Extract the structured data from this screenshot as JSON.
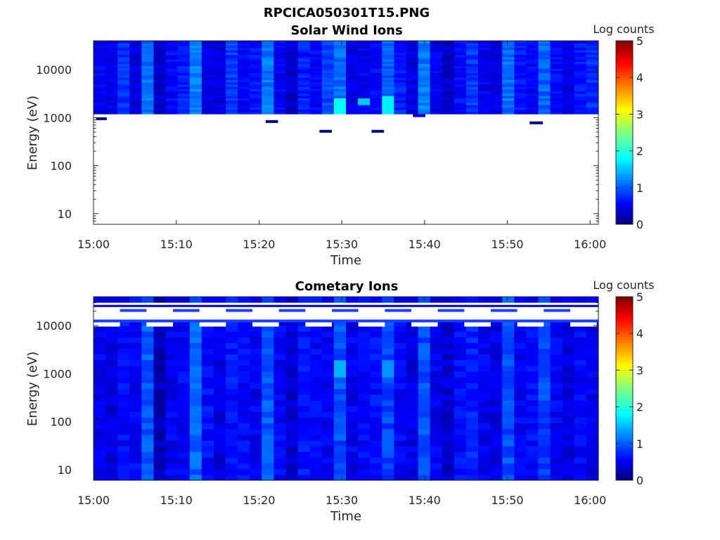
{
  "figure_title": "RPCICA050301T15.PNG",
  "chart_data": [
    {
      "type": "heatmap",
      "title": "Solar Wind Ions",
      "xlabel": "Time",
      "ylabel": "Energy (eV)",
      "x_tick_labels": [
        "15:00",
        "15:10",
        "15:20",
        "15:30",
        "15:40",
        "15:50",
        "16:00"
      ],
      "x_range_minutes": [
        0,
        61
      ],
      "y_scale": "log",
      "y_tick_labels": [
        "10",
        "100",
        "1000",
        "10000"
      ],
      "y_ticks": [
        10,
        100,
        1000,
        10000
      ],
      "ylim": [
        6,
        40000
      ],
      "colorbar": {
        "label": "Log counts",
        "range": [
          0,
          5
        ],
        "tick_labels": [
          "0",
          "1",
          "2",
          "3",
          "4",
          "5"
        ]
      },
      "column_means": [
        0.55,
        0.5,
        0.85,
        0.45,
        1.15,
        0.4,
        0.6,
        0.75,
        1.25,
        0.5,
        0.45,
        0.9,
        0.6,
        0.7,
        1.2,
        0.55,
        0.35,
        0.75,
        0.6,
        0.95,
        1.15,
        0.5,
        0.55,
        0.6,
        1.05,
        0.75,
        0.5,
        1.2,
        0.55,
        0.35,
        0.65,
        0.9,
        0.55,
        0.5,
        1.15,
        0.7,
        0.6,
        1.1,
        0.65,
        0.5,
        0.7,
        0.85
      ],
      "highlights": [
        {
          "t_start": 29.3,
          "t_end": 30.8,
          "e_low": 1200,
          "e_high": 2500,
          "value": 1.9
        },
        {
          "t_start": 32.3,
          "t_end": 34,
          "e_low": 1800,
          "e_high": 2600,
          "value": 1.6
        },
        {
          "t_start": 35.5,
          "t_end": 37,
          "e_low": 1200,
          "e_high": 3000,
          "value": 1.8
        }
      ],
      "segments": [
        {
          "t_start": 0.3,
          "t_end": 1.6,
          "energy": 950,
          "value": 0.1
        },
        {
          "t_start": 20.8,
          "t_end": 22.3,
          "energy": 830,
          "value": 0.1
        },
        {
          "t_start": 27.3,
          "t_end": 28.8,
          "energy": 520,
          "value": 0.1
        },
        {
          "t_start": 33.6,
          "t_end": 35.1,
          "energy": 520,
          "value": 0.1
        },
        {
          "t_start": 38.6,
          "t_end": 40.1,
          "energy": 1100,
          "value": 0.3
        },
        {
          "t_start": 52.7,
          "t_end": 54.3,
          "energy": 780,
          "value": 0.1
        }
      ]
    },
    {
      "type": "heatmap",
      "title": "Cometary Ions",
      "xlabel": "Time",
      "ylabel": "Energy (eV)",
      "x_tick_labels": [
        "15:00",
        "15:10",
        "15:20",
        "15:30",
        "15:40",
        "15:50",
        "16:00"
      ],
      "x_range_minutes": [
        0,
        61
      ],
      "y_scale": "log",
      "y_tick_labels": [
        "10",
        "100",
        "1000",
        "10000"
      ],
      "y_ticks": [
        10,
        100,
        1000,
        10000
      ],
      "ylim": [
        6,
        40000
      ],
      "colorbar": {
        "label": "Log counts",
        "range": [
          0,
          5
        ],
        "tick_labels": [
          "0",
          "1",
          "2",
          "3",
          "4",
          "5"
        ]
      },
      "column_means": [
        0.55,
        0.45,
        0.65,
        0.6,
        1.05,
        0.3,
        0.55,
        0.6,
        1.1,
        0.65,
        0.5,
        0.7,
        0.65,
        0.55,
        1.05,
        0.6,
        0.4,
        0.7,
        0.6,
        0.55,
        1.0,
        0.55,
        0.6,
        0.65,
        0.95,
        0.6,
        0.5,
        1.0,
        0.55,
        0.4,
        0.65,
        0.75,
        0.55,
        0.5,
        1.0,
        0.6,
        0.65,
        0.95,
        0.6,
        0.45,
        0.6,
        0.55
      ],
      "highlights": [
        {
          "t_start": 28.5,
          "t_end": 30.5,
          "e_low": 900,
          "e_high": 2000,
          "value": 1.5
        },
        {
          "t_start": 34.5,
          "t_end": 37,
          "e_low": 900,
          "e_high": 2000,
          "value": 1.35
        }
      ]
    }
  ]
}
